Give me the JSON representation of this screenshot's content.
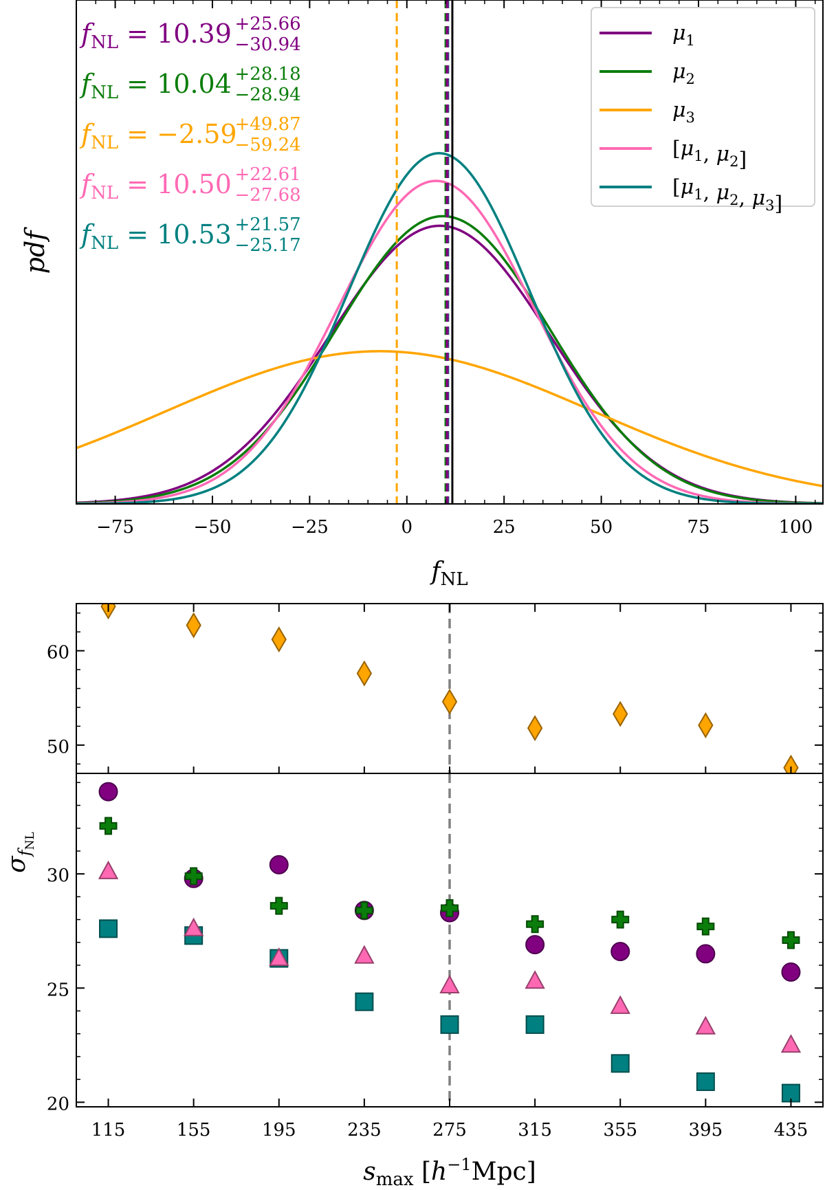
{
  "chart_data": [
    {
      "type": "line",
      "xlabel": "f_NL",
      "ylabel": "pdf",
      "xlim": [
        -85,
        107
      ],
      "grid": false,
      "legend_placement": "top-right",
      "xticks": [
        -75,
        -50,
        -25,
        0,
        25,
        50,
        75,
        100
      ],
      "series": [
        {
          "name": "μ1",
          "mean": 8.5,
          "sigma": 28.3,
          "peak": 0.552,
          "color": "#800080",
          "estimate": 10.39,
          "err_plus": 25.66,
          "err_minus": 30.94,
          "annotation_label": "fNL = 10.39",
          "annotation_sup": "+25.66",
          "annotation_sub": "−30.94"
        },
        {
          "name": "μ2",
          "mean": 9.3,
          "sigma": 27.5,
          "peak": 0.571,
          "color": "#0b7d0b",
          "estimate": 10.04,
          "err_plus": 28.18,
          "err_minus": 28.94,
          "annotation_label": "fNL = 10.04",
          "annotation_sup": "+28.18",
          "annotation_sub": "−28.94"
        },
        {
          "name": "μ3",
          "mean": -7.0,
          "sigma": 55.0,
          "peak": 0.303,
          "color": "#ffa500",
          "estimate": -2.59,
          "err_plus": 49.87,
          "err_minus": 59.24,
          "annotation_label": "fNL = −2.59",
          "annotation_sup": "+49.87",
          "annotation_sub": "−59.24"
        },
        {
          "name": "[μ1, μ2]",
          "mean": 7.5,
          "sigma": 25.2,
          "peak": 0.641,
          "color": "#ff69b4",
          "estimate": 10.5,
          "err_plus": 22.61,
          "err_minus": 27.68,
          "annotation_label": "fNL = 10.50",
          "annotation_sup": "+22.61",
          "annotation_sub": "−27.68"
        },
        {
          "name": "[μ1, μ2, μ3]",
          "mean": 8.3,
          "sigma": 23.3,
          "peak": 0.696,
          "color": "#008080",
          "estimate": 10.53,
          "err_plus": 21.57,
          "err_minus": 25.17,
          "annotation_label": "fNL = 10.53",
          "annotation_sup": "+21.57",
          "annotation_sub": "−25.17"
        }
      ],
      "reference_value": 11.7
    },
    {
      "type": "scatter",
      "xlabel": "s_max [h⁻¹Mpc]",
      "ylabel": "σ_fNL",
      "x": [
        115,
        155,
        195,
        235,
        275,
        315,
        355,
        395,
        435
      ],
      "xlim": [
        100,
        450
      ],
      "reference_x": 275,
      "top_panel": {
        "ylim": [
          47,
          65
        ],
        "yticks": [
          50,
          60
        ],
        "series": [
          {
            "name": "μ3",
            "marker": "diamond",
            "color": "#ffa500",
            "values": [
              64.7,
              62.7,
              61.2,
              57.6,
              54.6,
              51.8,
              53.3,
              52.1,
              47.6
            ]
          }
        ]
      },
      "bottom_panel": {
        "ylim": [
          19.8,
          34.4
        ],
        "yticks": [
          20,
          25,
          30
        ],
        "series": [
          {
            "name": "μ1",
            "marker": "circle",
            "color": "#800080",
            "values": [
              33.6,
              29.8,
              30.4,
              28.4,
              28.3,
              26.9,
              26.6,
              26.5,
              25.7
            ]
          },
          {
            "name": "μ2",
            "marker": "plus",
            "color": "#0b7d0b",
            "values": [
              32.1,
              29.9,
              28.6,
              28.4,
              28.5,
              27.8,
              28.0,
              27.7,
              27.1
            ]
          },
          {
            "name": "[μ1, μ2]",
            "marker": "triangle",
            "color": "#ff69b4",
            "values": [
              30.1,
              27.6,
              26.3,
              26.4,
              25.1,
              25.3,
              24.2,
              23.3,
              22.5
            ]
          },
          {
            "name": "[μ1, μ2, μ3]",
            "marker": "square",
            "color": "#008080",
            "values": [
              27.6,
              27.3,
              26.3,
              24.4,
              23.4,
              23.4,
              21.7,
              20.9,
              20.4
            ]
          }
        ]
      }
    }
  ]
}
